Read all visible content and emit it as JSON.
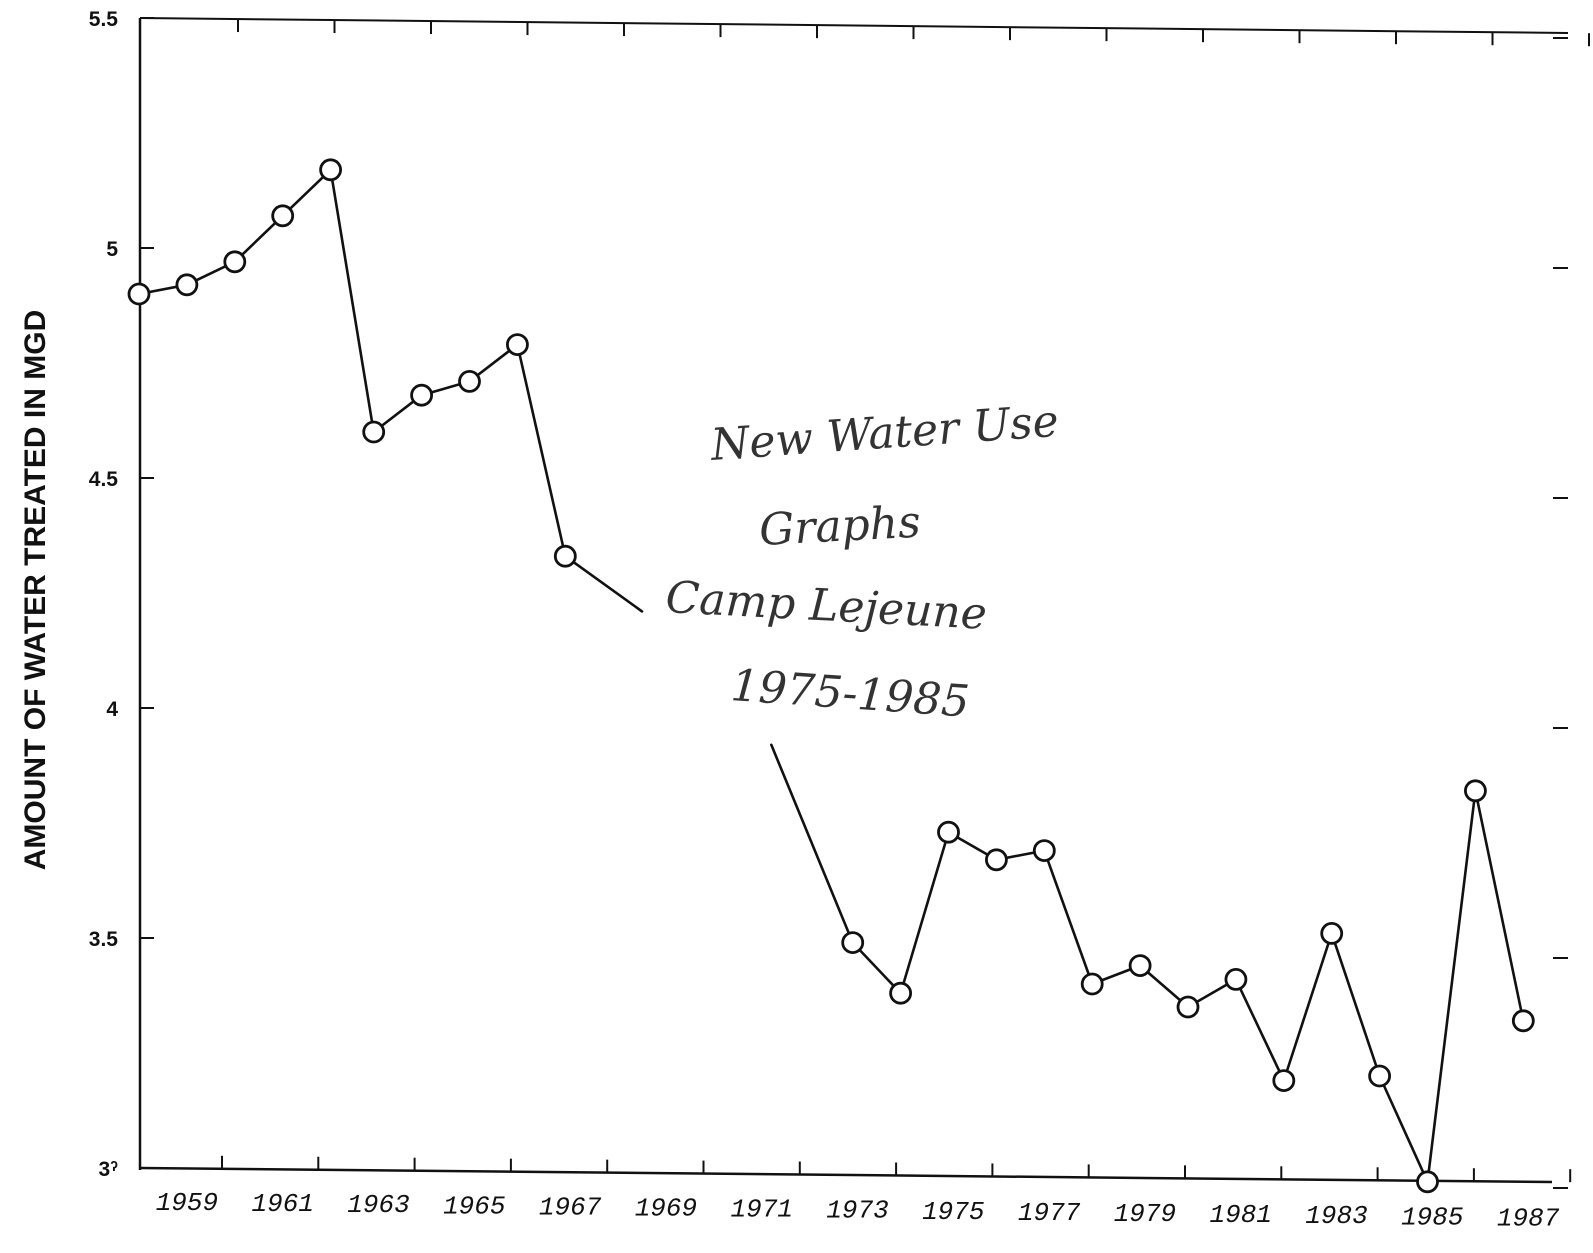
{
  "chart_data": {
    "type": "line",
    "title": "",
    "xlabel": "",
    "ylabel": "AMOUNT OF WATER TREATED IN MGD",
    "ylim": [
      3,
      5.5
    ],
    "xlim": [
      1958,
      1987.8
    ],
    "yticks": [
      {
        "value": 3,
        "label": "3ˀ"
      },
      {
        "value": 3.5,
        "label": "3.5"
      },
      {
        "value": 4,
        "label": "4"
      },
      {
        "value": 4.5,
        "label": "4.5"
      },
      {
        "value": 5,
        "label": "5"
      },
      {
        "value": 5.5,
        "label": "5.5"
      }
    ],
    "xtick_labels": [
      "1959",
      "1961",
      "1963",
      "1965",
      "1967",
      "1969",
      "1971",
      "1973",
      "1975",
      "1977",
      "1979",
      "1981",
      "1983",
      "1985",
      "1987"
    ],
    "grid": false,
    "series": [
      {
        "segments": [
          [
            {
              "x": 1958,
              "y": 4.9
            },
            {
              "x": 1959,
              "y": 4.92
            },
            {
              "x": 1960,
              "y": 4.97
            },
            {
              "x": 1961,
              "y": 5.07
            },
            {
              "x": 1962,
              "y": 5.17
            }
          ],
          [
            {
              "x": 1962,
              "y": 5.17
            },
            {
              "x": 1962.9,
              "y": 4.6
            }
          ],
          [
            {
              "x": 1962.9,
              "y": 4.6
            },
            {
              "x": 1963.9,
              "y": 4.68
            },
            {
              "x": 1964.9,
              "y": 4.71
            },
            {
              "x": 1965.9,
              "y": 4.79
            },
            {
              "x": 1966.9,
              "y": 4.33
            }
          ],
          [
            {
              "x": 1966.9,
              "y": 4.33
            },
            {
              "x": 1968.5,
              "y": 4.21
            }
          ],
          [
            {
              "x": 1971.2,
              "y": 3.92
            },
            {
              "x": 1972.9,
              "y": 3.49
            },
            {
              "x": 1973.9,
              "y": 3.38
            },
            {
              "x": 1974.9,
              "y": 3.73
            },
            {
              "x": 1975.9,
              "y": 3.67
            },
            {
              "x": 1976.9,
              "y": 3.69
            },
            {
              "x": 1977.9,
              "y": 3.4
            },
            {
              "x": 1978.9,
              "y": 3.44
            },
            {
              "x": 1979.9,
              "y": 3.35
            },
            {
              "x": 1980.9,
              "y": 3.41
            },
            {
              "x": 1981.9,
              "y": 3.19
            },
            {
              "x": 1982.9,
              "y": 3.51
            },
            {
              "x": 1983.9,
              "y": 3.2
            },
            {
              "x": 1984.9,
              "y": 2.97
            },
            {
              "x": 1985.9,
              "y": 3.82
            },
            {
              "x": 1986.9,
              "y": 3.32
            }
          ]
        ],
        "markers": [
          {
            "x": 1958,
            "y": 4.9
          },
          {
            "x": 1959,
            "y": 4.92
          },
          {
            "x": 1960,
            "y": 4.97
          },
          {
            "x": 1961,
            "y": 5.07
          },
          {
            "x": 1962,
            "y": 5.17
          },
          {
            "x": 1962.9,
            "y": 4.6
          },
          {
            "x": 1963.9,
            "y": 4.68
          },
          {
            "x": 1964.9,
            "y": 4.71
          },
          {
            "x": 1965.9,
            "y": 4.79
          },
          {
            "x": 1966.9,
            "y": 4.33
          },
          {
            "x": 1972.9,
            "y": 3.49
          },
          {
            "x": 1973.9,
            "y": 3.38
          },
          {
            "x": 1974.9,
            "y": 3.73
          },
          {
            "x": 1975.9,
            "y": 3.67
          },
          {
            "x": 1976.9,
            "y": 3.69
          },
          {
            "x": 1977.9,
            "y": 3.4
          },
          {
            "x": 1978.9,
            "y": 3.44
          },
          {
            "x": 1979.9,
            "y": 3.35
          },
          {
            "x": 1980.9,
            "y": 3.41
          },
          {
            "x": 1981.9,
            "y": 3.19
          },
          {
            "x": 1982.9,
            "y": 3.51
          },
          {
            "x": 1983.9,
            "y": 3.2
          },
          {
            "x": 1984.9,
            "y": 2.97
          },
          {
            "x": 1985.9,
            "y": 3.82
          },
          {
            "x": 1986.9,
            "y": 3.32
          }
        ]
      }
    ],
    "handwritten_note": [
      "New Water Use",
      "Graphs",
      "Camp Lejeune",
      "1975-1985"
    ]
  }
}
